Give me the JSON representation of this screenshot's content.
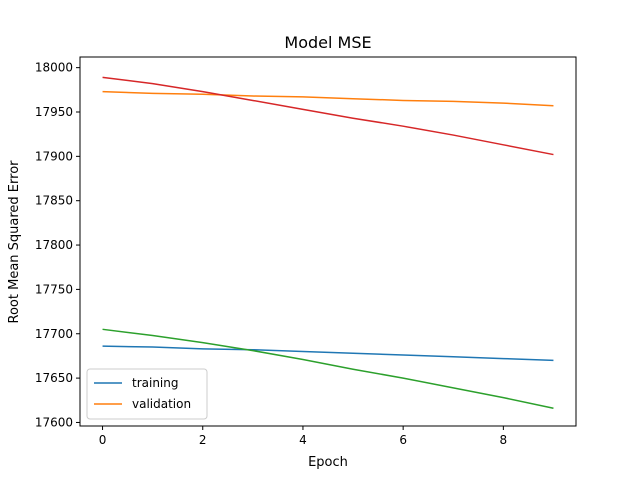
{
  "chart_data": {
    "type": "line",
    "title": "Model MSE",
    "xlabel": "Epoch",
    "ylabel": "Root Mean Squared Error",
    "x": [
      0,
      1,
      2,
      3,
      4,
      5,
      6,
      7,
      8,
      9
    ],
    "xlim": [
      -0.45,
      9.45
    ],
    "ylim": [
      17596,
      18012
    ],
    "xticks": [
      0,
      2,
      4,
      6,
      8
    ],
    "yticks": [
      17600,
      17650,
      17700,
      17750,
      17800,
      17850,
      17900,
      17950,
      18000
    ],
    "grid": false,
    "legend_position": "lower-left",
    "series": [
      {
        "name": "training",
        "color": "#1f77b4",
        "values": [
          17686,
          17685,
          17683,
          17682,
          17680,
          17678,
          17676,
          17674,
          17672,
          17670
        ],
        "in_legend": true
      },
      {
        "name": "validation",
        "color": "#ff7f0e",
        "values": [
          17973,
          17971,
          17970,
          17968,
          17967,
          17965,
          17963,
          17962,
          17960,
          17957
        ],
        "in_legend": true
      },
      {
        "color": "#d62728",
        "values": [
          17989,
          17982,
          17973,
          17963,
          17953,
          17943,
          17934,
          17924,
          17913,
          17902
        ],
        "in_legend": false
      },
      {
        "color": "#2ca02c",
        "values": [
          17705,
          17698,
          17690,
          17681,
          17671,
          17660,
          17650,
          17639,
          17628,
          17616
        ],
        "in_legend": false
      }
    ]
  }
}
